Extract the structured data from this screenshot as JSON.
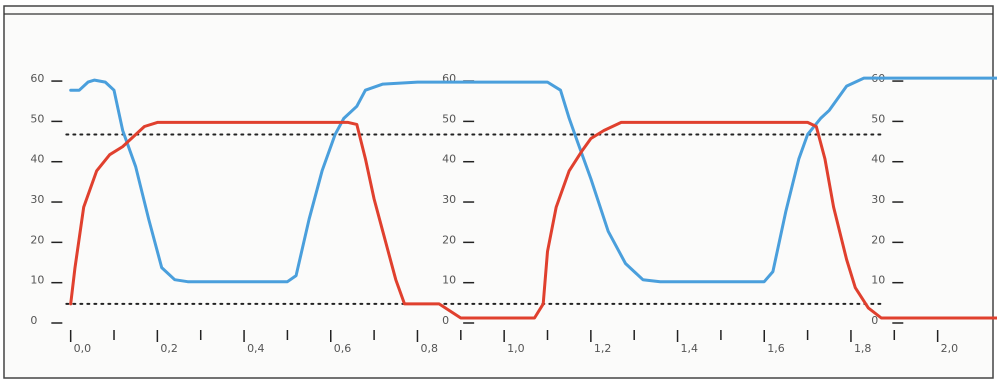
{
  "chart_data": {
    "type": "line",
    "title": "",
    "xlabel": "",
    "ylabel": "",
    "xlim": [
      -0.02,
      2.16
    ],
    "ylim": [
      0,
      62
    ],
    "x_ticks": [
      "0,0",
      "0,2",
      "0,4",
      "0,6",
      "0,8",
      "1,0",
      "1,2",
      "1,4",
      "1,6",
      "1,8",
      "2,0"
    ],
    "x_tick_values": [
      0.0,
      0.2,
      0.4,
      0.6,
      0.8,
      1.0,
      1.2,
      1.4,
      1.6,
      1.8,
      2.0
    ],
    "y_axes": [
      {
        "at_x": -0.01,
        "ticks": [
          "60",
          "50",
          "40",
          "30",
          "20",
          "10",
          "0"
        ]
      },
      {
        "at_x": 0.94,
        "ticks": [
          "60",
          "50",
          "40",
          "30",
          "20",
          "10",
          "0"
        ]
      },
      {
        "at_x": 1.93,
        "ticks": [
          "60",
          "50",
          "40",
          "30",
          "20",
          "10",
          "0"
        ]
      }
    ],
    "y_tick_values": [
      60,
      50,
      40,
      30,
      20,
      10,
      0
    ],
    "reference_lines": [
      {
        "y": 46,
        "x_range": [
          -0.01,
          1.87
        ],
        "style": "dotted"
      },
      {
        "y": 4,
        "x_range": [
          -0.01,
          1.87
        ],
        "style": "dotted"
      }
    ],
    "series": [
      {
        "color": "#4a9fdc",
        "x": [
          0.0,
          0.02,
          0.04,
          0.055,
          0.08,
          0.1,
          0.12,
          0.15,
          0.18,
          0.21,
          0.24,
          0.27,
          0.3,
          0.4,
          0.5,
          0.52,
          0.55,
          0.58,
          0.61,
          0.63,
          0.66,
          0.68,
          0.72,
          0.8,
          0.9,
          1.0,
          1.1,
          1.13,
          1.15,
          1.17,
          1.2,
          1.24,
          1.28,
          1.32,
          1.36,
          1.4,
          1.5,
          1.6,
          1.62,
          1.65,
          1.68,
          1.7,
          1.73,
          1.75,
          1.79,
          1.83,
          1.9,
          2.0,
          2.1,
          2.14
        ],
        "y": [
          57,
          57,
          59,
          59.5,
          59,
          57,
          47,
          38,
          25,
          13,
          10,
          9.5,
          9.5,
          9.5,
          9.5,
          11,
          25,
          37,
          46,
          50,
          53,
          57,
          58.5,
          59,
          59,
          59,
          59,
          57,
          50,
          44,
          35,
          22,
          14,
          10,
          9.5,
          9.5,
          9.5,
          9.5,
          12,
          27,
          40,
          46,
          50,
          52,
          58,
          60,
          60,
          60,
          60,
          60
        ]
      },
      {
        "color": "#e0402e",
        "x": [
          0.0,
          0.01,
          0.03,
          0.06,
          0.09,
          0.12,
          0.14,
          0.17,
          0.2,
          0.3,
          0.4,
          0.5,
          0.6,
          0.64,
          0.66,
          0.68,
          0.7,
          0.73,
          0.75,
          0.77,
          0.8,
          0.85,
          0.9,
          0.95,
          1.0,
          1.04,
          1.07,
          1.09,
          1.1,
          1.12,
          1.15,
          1.18,
          1.2,
          1.23,
          1.27,
          1.3,
          1.4,
          1.5,
          1.6,
          1.65,
          1.7,
          1.72,
          1.74,
          1.76,
          1.79,
          1.81,
          1.84,
          1.87,
          1.9,
          2.0,
          2.1,
          2.14
        ],
        "y": [
          4,
          13,
          28,
          37,
          41,
          43,
          45,
          48,
          49,
          49,
          49,
          49,
          49,
          49,
          48.5,
          40,
          30,
          18,
          10,
          4,
          4,
          4,
          0.5,
          0.5,
          0.5,
          0.5,
          0.5,
          4,
          17,
          28,
          37,
          42,
          45,
          47,
          49,
          49,
          49,
          49,
          49,
          49,
          49,
          48,
          40,
          28,
          15,
          8,
          3,
          0.5,
          0.5,
          0.5,
          0.5,
          0.5
        ]
      }
    ]
  }
}
